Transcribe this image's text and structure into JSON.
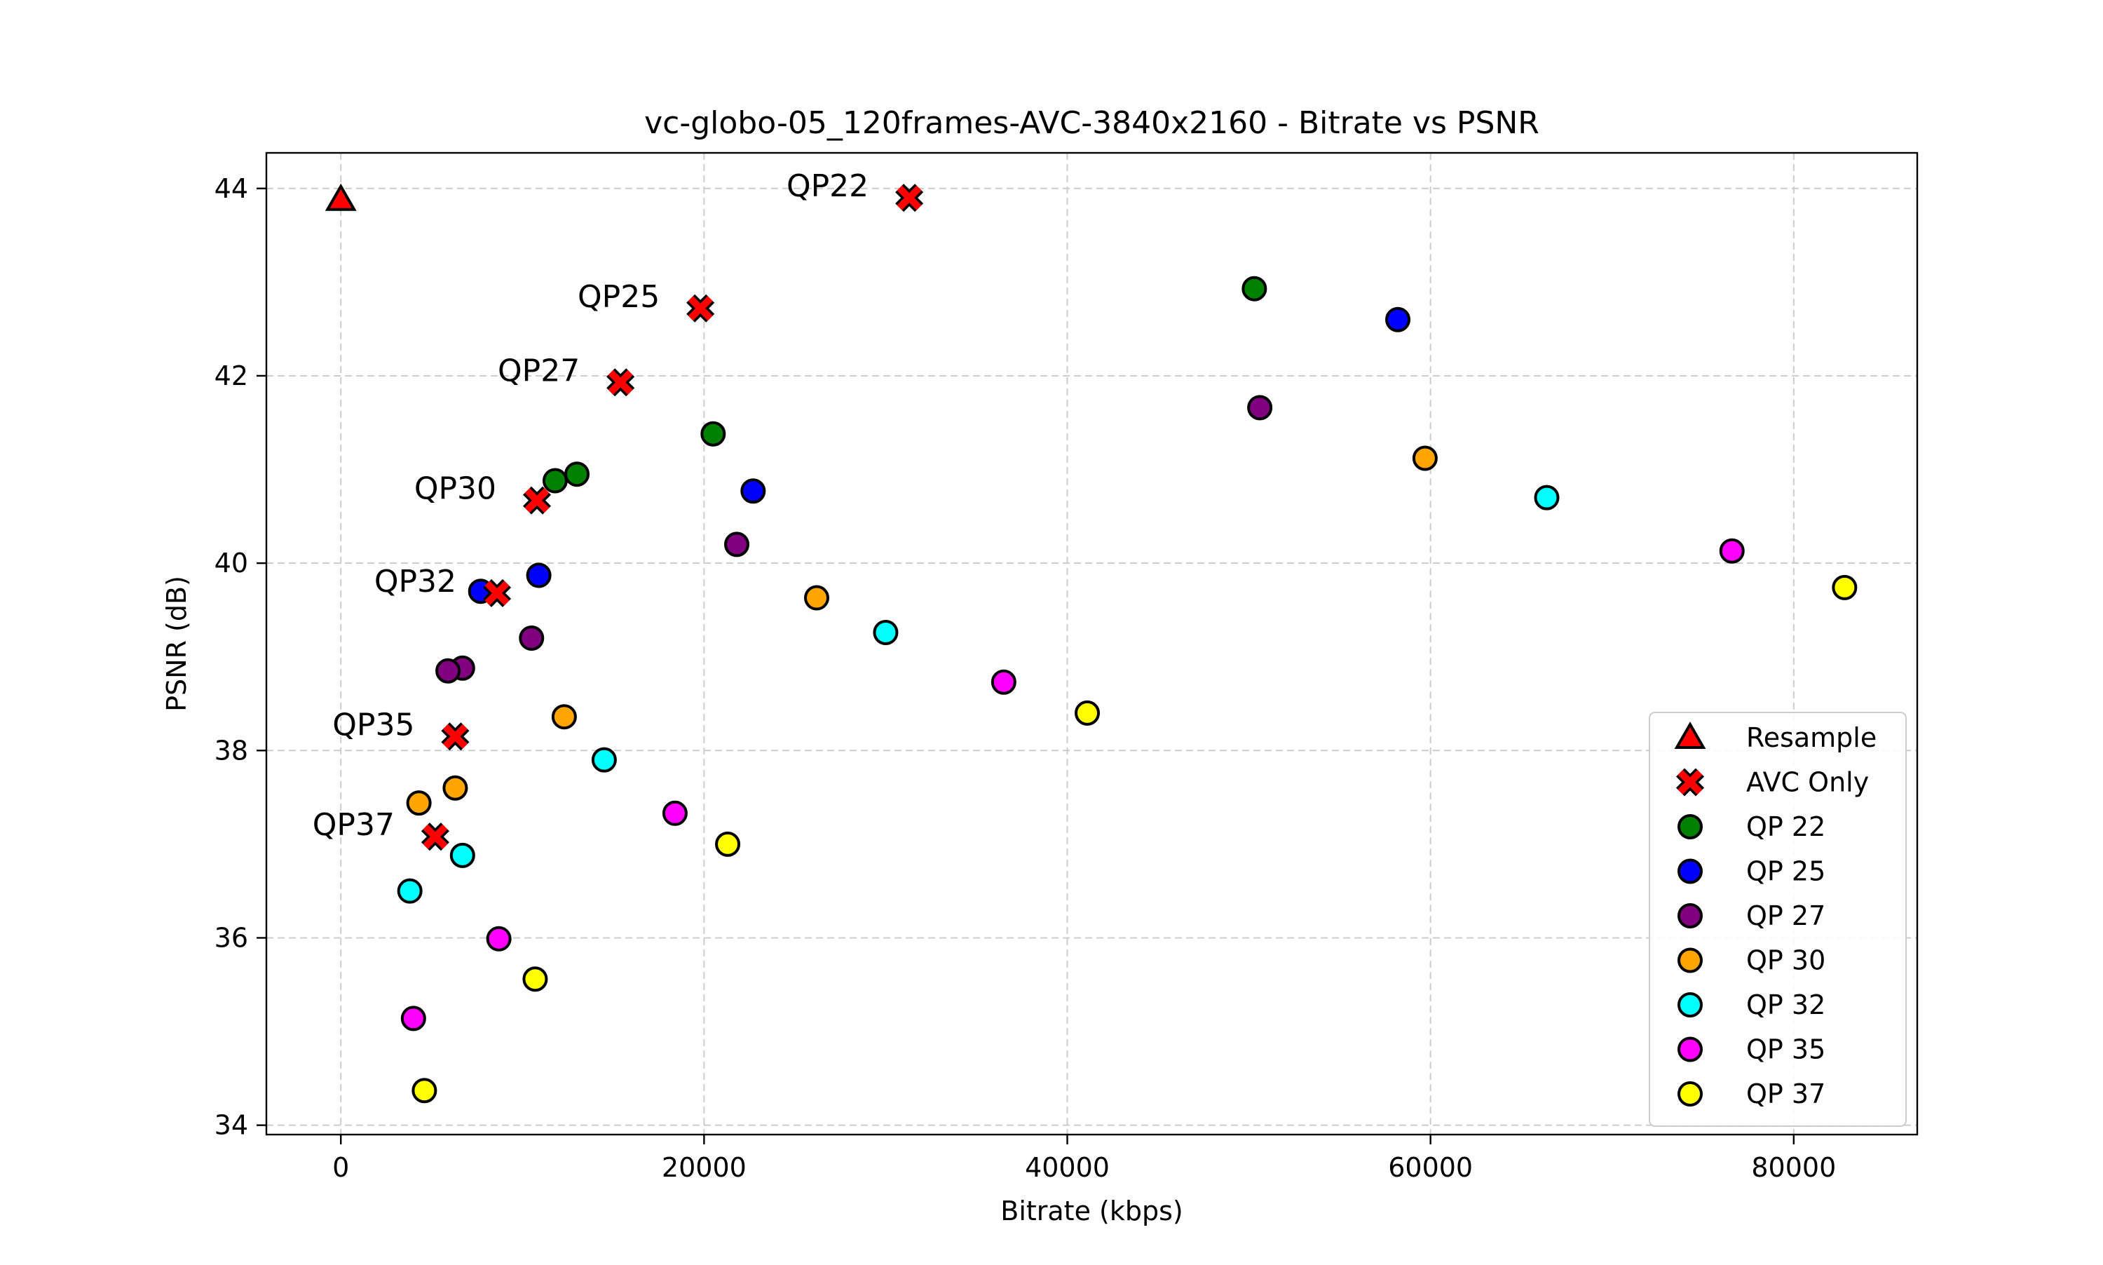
{
  "chart_data": {
    "type": "scatter",
    "title": "vc-globo-05_120frames-AVC-3840x2160 - Bitrate vs PSNR",
    "xlabel": "Bitrate (kbps)",
    "ylabel": "PSNR (dB)",
    "xlim": [
      -4100,
      86800
    ],
    "ylim": [
      33.9,
      44.38
    ],
    "xticks": [
      0,
      20000,
      40000,
      60000,
      80000
    ],
    "yticks": [
      34,
      36,
      38,
      40,
      42,
      44
    ],
    "grid": true,
    "legend_position": "lower-right",
    "series": [
      {
        "name": "Resample",
        "marker": "triangle",
        "color": "#ff0000",
        "points": [
          [
            0,
            43.88
          ]
        ]
      },
      {
        "name": "AVC Only",
        "marker": "x",
        "color": "#ff0000",
        "points": [
          [
            31300,
            43.9
          ],
          [
            19800,
            42.72
          ],
          [
            15400,
            41.93
          ],
          [
            10800,
            40.67
          ],
          [
            8600,
            39.68
          ],
          [
            6300,
            38.15
          ],
          [
            5200,
            37.08
          ]
        ],
        "annotations": [
          "QP22",
          "QP25",
          "QP27",
          "QP30",
          "QP32",
          "QP35",
          "QP37"
        ]
      },
      {
        "name": "QP 22",
        "marker": "circle",
        "color": "#008000",
        "points": [
          [
            50300,
            42.93
          ],
          [
            20500,
            41.38
          ],
          [
            13000,
            40.95
          ],
          [
            11800,
            40.88
          ]
        ]
      },
      {
        "name": "QP 25",
        "marker": "circle",
        "color": "#0000ff",
        "points": [
          [
            58200,
            42.6
          ],
          [
            22700,
            40.77
          ],
          [
            10900,
            39.87
          ],
          [
            7700,
            39.7
          ]
        ]
      },
      {
        "name": "QP 27",
        "marker": "circle",
        "color": "#800080",
        "points": [
          [
            50600,
            41.66
          ],
          [
            21800,
            40.2
          ],
          [
            10500,
            39.2
          ],
          [
            6700,
            38.88
          ],
          [
            5900,
            38.85
          ]
        ]
      },
      {
        "name": "QP 30",
        "marker": "circle",
        "color": "#ffa500",
        "points": [
          [
            59700,
            41.12
          ],
          [
            26200,
            39.63
          ],
          [
            12300,
            38.36
          ],
          [
            6300,
            37.6
          ],
          [
            4300,
            37.44
          ]
        ]
      },
      {
        "name": "QP 32",
        "marker": "circle",
        "color": "#00ffff",
        "points": [
          [
            66400,
            40.7
          ],
          [
            30000,
            39.26
          ],
          [
            14500,
            37.9
          ],
          [
            6700,
            36.88
          ],
          [
            3800,
            36.5
          ]
        ]
      },
      {
        "name": "QP 35",
        "marker": "circle",
        "color": "#ff00ff",
        "points": [
          [
            76600,
            40.13
          ],
          [
            36500,
            38.73
          ],
          [
            18400,
            37.33
          ],
          [
            8700,
            35.99
          ],
          [
            4000,
            35.14
          ]
        ]
      },
      {
        "name": "QP 37",
        "marker": "circle",
        "color": "#ffff00",
        "points": [
          [
            82800,
            39.74
          ],
          [
            41100,
            38.4
          ],
          [
            21300,
            37.0
          ],
          [
            10700,
            35.56
          ],
          [
            4600,
            34.37
          ]
        ]
      }
    ]
  }
}
